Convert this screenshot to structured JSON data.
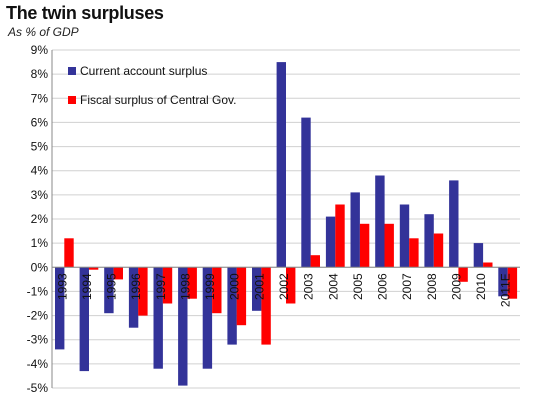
{
  "title": "The twin surpluses",
  "subtitle": "As % of GDP",
  "colors": {
    "current_account": "#333399",
    "fiscal": "#ff0000",
    "grid": "#d0d0d0",
    "axis": "#888888"
  },
  "chart_data": {
    "type": "bar",
    "title": "The twin surpluses",
    "subtitle": "As % of GDP",
    "xlabel": "",
    "ylabel": "",
    "ylim": [
      -5,
      9
    ],
    "yticks": [
      "9%",
      "8%",
      "7%",
      "6%",
      "5%",
      "4%",
      "3%",
      "2%",
      "1%",
      "0%",
      "-1%",
      "-2%",
      "-3%",
      "-4%",
      "-5%"
    ],
    "ytick_values": [
      9,
      8,
      7,
      6,
      5,
      4,
      3,
      2,
      1,
      0,
      -1,
      -2,
      -3,
      -4,
      -5
    ],
    "grid": true,
    "legend_position": "top-left",
    "categories": [
      "1993",
      "1994",
      "1995",
      "1996",
      "1997",
      "1998",
      "1999",
      "2000",
      "2001",
      "2002",
      "2003",
      "2004",
      "2005",
      "2006",
      "2007",
      "2008",
      "2009",
      "2010",
      "2011E"
    ],
    "series": [
      {
        "name": "Current account surplus",
        "color": "#333399",
        "values": [
          -3.4,
          -4.3,
          -1.9,
          -2.5,
          -4.2,
          -4.9,
          -4.2,
          -3.2,
          -1.8,
          8.5,
          6.2,
          2.1,
          3.1,
          3.8,
          2.6,
          2.2,
          3.6,
          1.0,
          -1.2
        ]
      },
      {
        "name": "Fiscal surplus of Central Gov.",
        "color": "#ff0000",
        "values": [
          1.2,
          -0.1,
          -0.5,
          -2.0,
          -1.5,
          -1.3,
          -1.9,
          -2.4,
          -3.2,
          -1.5,
          0.5,
          2.6,
          1.8,
          1.8,
          1.2,
          1.4,
          -0.6,
          0.2,
          -1.3
        ]
      }
    ]
  }
}
